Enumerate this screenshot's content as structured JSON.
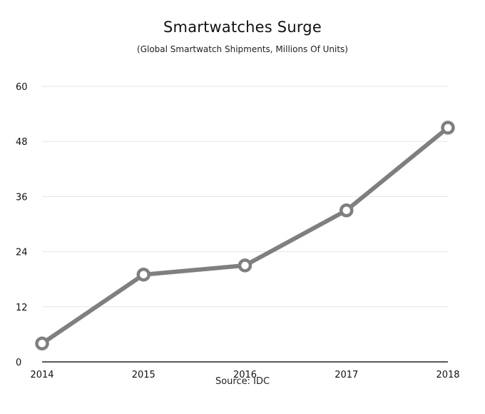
{
  "chart_data": {
    "type": "line",
    "title": "Smartwatches Surge",
    "subtitle": "(Global Smartwatch Shipments, Millions Of Units)",
    "source": "Source: IDC",
    "x": [
      "2014",
      "2015",
      "2016",
      "2017",
      "2018"
    ],
    "series": [
      {
        "values": [
          4,
          19,
          21,
          33,
          51
        ]
      }
    ],
    "ylim": [
      0,
      60
    ],
    "yticks": [
      0,
      12,
      24,
      36,
      48,
      60
    ],
    "grid": true,
    "legend": "none",
    "colors": {
      "line": "#7f807e",
      "marker_fill": "#ffffff",
      "grid": "#e3e3e3",
      "axis": "#222222"
    }
  }
}
